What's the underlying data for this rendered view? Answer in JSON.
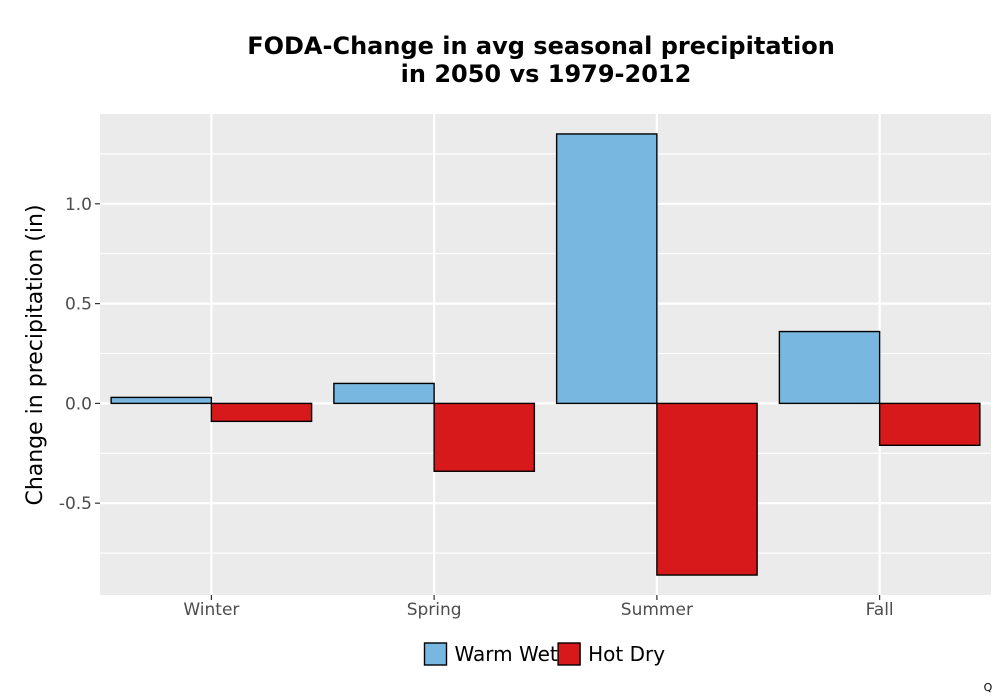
{
  "chart_data": {
    "type": "bar",
    "title_lines": [
      "FODA-Change in avg seasonal precipitation",
      "in 2050 vs 1979-2012"
    ],
    "xlabel": "",
    "ylabel": "Change in precipitation (in)",
    "categories": [
      "Winter",
      "Spring",
      "Summer",
      "Fall"
    ],
    "series": [
      {
        "name": "Warm Wet",
        "color": "#77b7e0",
        "values": [
          0.03,
          0.1,
          1.35,
          0.36
        ]
      },
      {
        "name": "Hot Dry",
        "color": "#d7191c",
        "values": [
          -0.09,
          -0.34,
          -0.86,
          -0.21
        ]
      }
    ],
    "ylim": [
      -0.96,
      1.45
    ],
    "yticks": [
      -0.5,
      0.0,
      0.5,
      1.0
    ],
    "ytick_labels": [
      "-0.5",
      "0.0",
      "0.5",
      "1.0"
    ],
    "grid": true,
    "legend_position": "bottom",
    "panel_background": "#ebebeb",
    "corner_mark": "Q"
  }
}
